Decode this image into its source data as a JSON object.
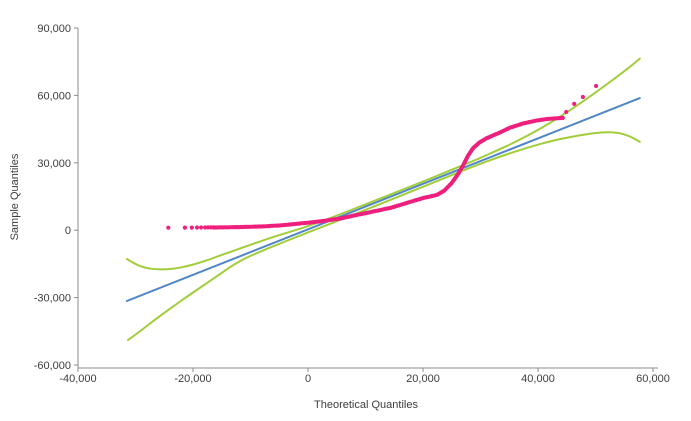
{
  "colors": {
    "points": "#ee1f7d",
    "fit_line": "#4f86c6",
    "confidence_band": "#a2cd3a",
    "axis": "#8c8c8c",
    "text": "#3d3d3d",
    "background": "#ffffff"
  },
  "chart_data": {
    "type": "scatter",
    "title": "",
    "xlabel": "Theoretical Quantiles",
    "ylabel": "Sample Quantiles",
    "x_range": [
      -40000,
      60000
    ],
    "y_range": [
      -60000,
      90000
    ],
    "grid": false,
    "legend": "none",
    "x_ticks": [
      {
        "value": -40000,
        "label": "-40,000"
      },
      {
        "value": -20000,
        "label": "-20,000"
      },
      {
        "value": 0,
        "label": "0"
      },
      {
        "value": 20000,
        "label": "20,000"
      },
      {
        "value": 40000,
        "label": "40,000"
      },
      {
        "value": 60000,
        "label": "60,000"
      }
    ],
    "y_ticks": [
      {
        "value": 90000,
        "label": "90,000"
      },
      {
        "value": 60000,
        "label": "60,000"
      },
      {
        "value": 30000,
        "label": "30,000"
      },
      {
        "value": 0,
        "label": "0"
      },
      {
        "value": -30000,
        "label": "-30,000"
      },
      {
        "value": -60000,
        "label": "-60,000"
      }
    ],
    "series": [
      {
        "name": "fit-line",
        "type": "line",
        "color": "#4f86c6",
        "points": [
          [
            -31500,
            -31500
          ],
          [
            57700,
            58800
          ]
        ]
      },
      {
        "name": "upper-confidence-curve",
        "type": "line",
        "color": "#a2cd3a",
        "points": [
          [
            -31500,
            -12800
          ],
          [
            -30000,
            -15200
          ],
          [
            -28500,
            -16600
          ],
          [
            -27000,
            -17300
          ],
          [
            -25000,
            -17500
          ],
          [
            -23000,
            -17000
          ],
          [
            -21000,
            -16000
          ],
          [
            -19000,
            -14600
          ],
          [
            -17000,
            -12900
          ],
          [
            -15000,
            -11000
          ],
          [
            -13000,
            -9200
          ],
          [
            -11000,
            -7400
          ],
          [
            -9000,
            -5600
          ],
          [
            -7000,
            -3800
          ],
          [
            -5000,
            -2200
          ],
          [
            -3000,
            -600
          ],
          [
            0,
            1800
          ],
          [
            3000,
            4500
          ],
          [
            6000,
            7500
          ],
          [
            9000,
            10500
          ],
          [
            12000,
            13500
          ],
          [
            15000,
            16600
          ],
          [
            18000,
            19600
          ],
          [
            21000,
            22700
          ],
          [
            24000,
            25800
          ],
          [
            27000,
            29000
          ],
          [
            30000,
            32200
          ],
          [
            33000,
            35600
          ],
          [
            36000,
            39200
          ],
          [
            39000,
            43200
          ],
          [
            42000,
            47600
          ],
          [
            45000,
            52400
          ],
          [
            48000,
            57600
          ],
          [
            51000,
            63100
          ],
          [
            54000,
            68800
          ],
          [
            56000,
            72700
          ],
          [
            57700,
            76400
          ]
        ]
      },
      {
        "name": "lower-confidence-curve",
        "type": "line",
        "color": "#a2cd3a",
        "points": [
          [
            -31300,
            -48900
          ],
          [
            -29000,
            -44600
          ],
          [
            -27000,
            -40600
          ],
          [
            -25000,
            -36800
          ],
          [
            -23000,
            -33100
          ],
          [
            -21000,
            -29500
          ],
          [
            -19000,
            -26000
          ],
          [
            -17000,
            -22500
          ],
          [
            -15000,
            -19000
          ],
          [
            -13000,
            -15400
          ],
          [
            -11000,
            -12600
          ],
          [
            -9000,
            -10300
          ],
          [
            -7000,
            -8100
          ],
          [
            -5000,
            -6100
          ],
          [
            -3000,
            -4000
          ],
          [
            0,
            -1000
          ],
          [
            3000,
            2000
          ],
          [
            6000,
            5000
          ],
          [
            9000,
            8000
          ],
          [
            12000,
            11100
          ],
          [
            15000,
            14200
          ],
          [
            18000,
            17300
          ],
          [
            21000,
            20400
          ],
          [
            24000,
            23500
          ],
          [
            27000,
            26600
          ],
          [
            30000,
            29600
          ],
          [
            33000,
            32400
          ],
          [
            36000,
            35000
          ],
          [
            39000,
            37400
          ],
          [
            42000,
            39500
          ],
          [
            45000,
            41200
          ],
          [
            48000,
            42600
          ],
          [
            50000,
            43300
          ],
          [
            52000,
            43700
          ],
          [
            54000,
            43400
          ],
          [
            56000,
            41900
          ],
          [
            57700,
            39300
          ]
        ]
      },
      {
        "name": "sample-points",
        "type": "scatter",
        "color": "#ee1f7d",
        "isolated_points": [
          [
            -24300,
            1100
          ],
          [
            -21400,
            1150
          ],
          [
            -20200,
            1150
          ],
          [
            -19300,
            1200
          ],
          [
            -18600,
            1200
          ],
          [
            -17900,
            1200
          ],
          [
            -17400,
            1250
          ],
          [
            -16900,
            1250
          ],
          [
            -16500,
            1250
          ],
          [
            44900,
            52600
          ],
          [
            46300,
            56200
          ],
          [
            47800,
            59300
          ],
          [
            50100,
            64200
          ]
        ],
        "dense_band_anchors": [
          [
            -16200,
            1200
          ],
          [
            -11800,
            1400
          ],
          [
            -8300,
            1650
          ],
          [
            -4900,
            2100
          ],
          [
            -1400,
            3000
          ],
          [
            300,
            3400
          ],
          [
            2600,
            4100
          ],
          [
            5600,
            5200
          ],
          [
            8500,
            6800
          ],
          [
            11700,
            8500
          ],
          [
            14600,
            10100
          ],
          [
            17700,
            12550
          ],
          [
            20000,
            14300
          ],
          [
            22400,
            15700
          ],
          [
            23700,
            17600
          ],
          [
            25000,
            21000
          ],
          [
            26100,
            25000
          ],
          [
            27000,
            29000
          ],
          [
            27800,
            33000
          ],
          [
            28700,
            36500
          ],
          [
            29800,
            39000
          ],
          [
            31100,
            41000
          ],
          [
            33400,
            43500
          ],
          [
            35100,
            45600
          ],
          [
            37400,
            47500
          ],
          [
            39500,
            48700
          ],
          [
            41600,
            49500
          ],
          [
            43100,
            49800
          ],
          [
            44400,
            50000
          ]
        ]
      }
    ]
  }
}
